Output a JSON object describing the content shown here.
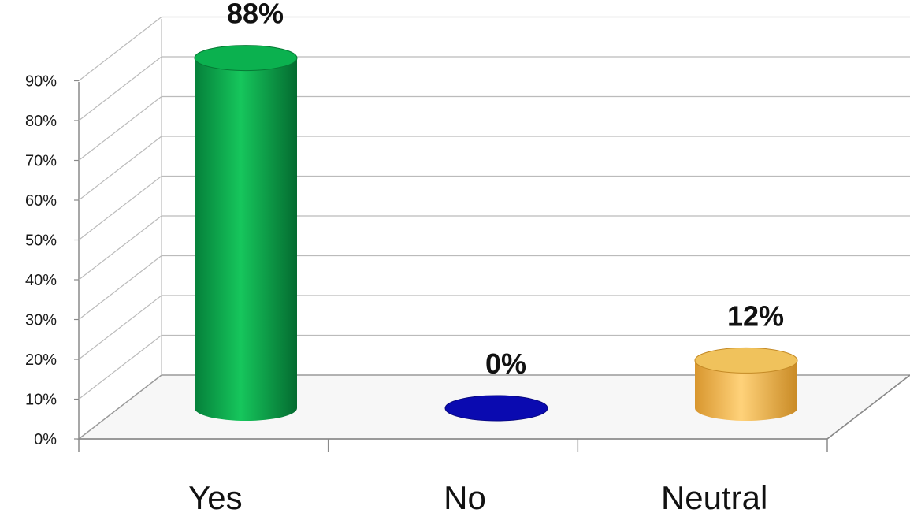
{
  "chart_data": {
    "type": "bar",
    "bar_shape": "cylinder-3d",
    "categories": [
      "Yes",
      "No",
      "Neutral"
    ],
    "values": [
      88,
      0,
      12
    ],
    "data_labels": [
      "88%",
      "0%",
      "12%"
    ],
    "colors": [
      "#0aa84a",
      "#0a0ab0",
      "#e9b24a"
    ],
    "yticks": [
      "0%",
      "10%",
      "20%",
      "30%",
      "40%",
      "50%",
      "60%",
      "70%",
      "80%",
      "90%"
    ],
    "ylim": [
      0,
      90
    ],
    "grid": true,
    "legend": "none"
  }
}
